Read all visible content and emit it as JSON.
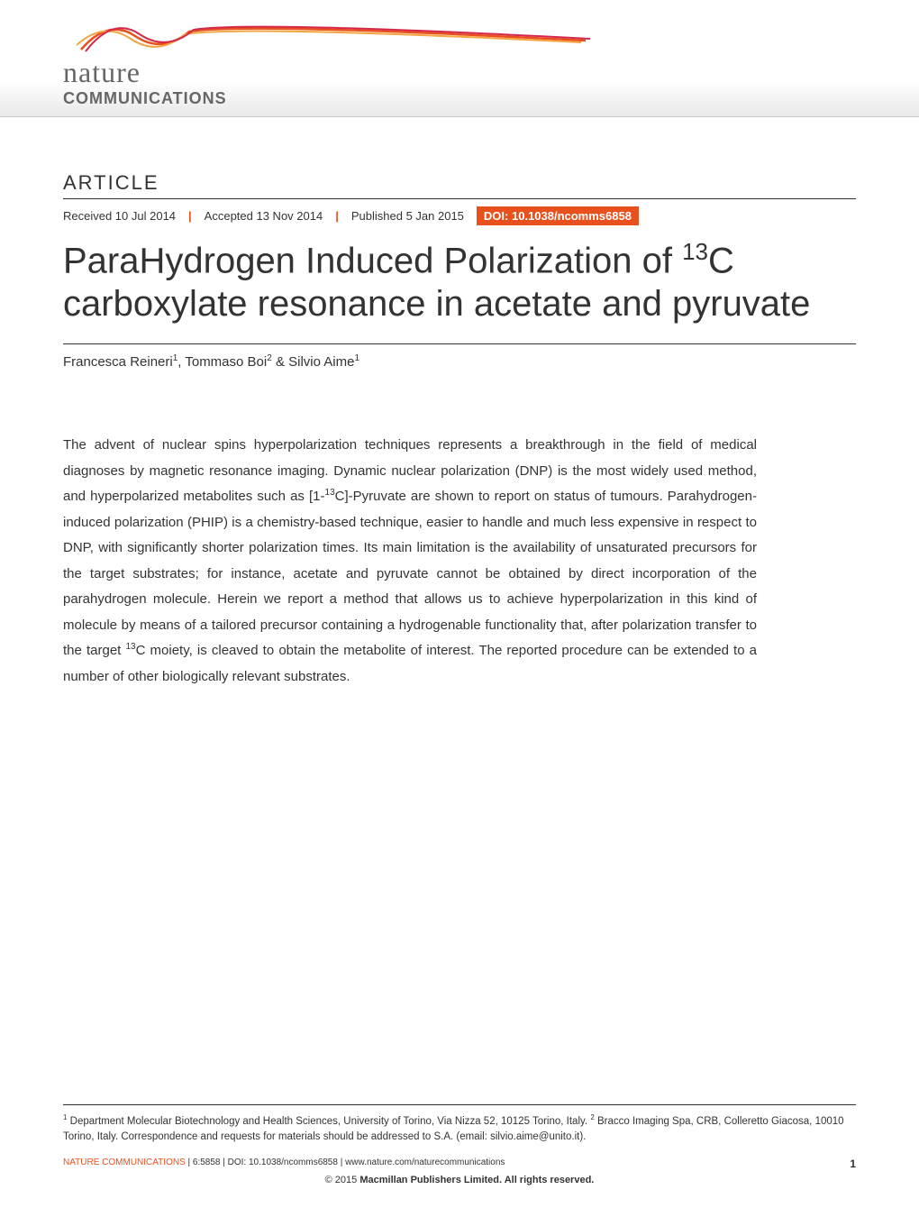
{
  "header": {
    "logo_nature": "nature",
    "logo_communications": "COMMUNICATIONS",
    "wave_colors": [
      "#e8501e",
      "#f4a540",
      "#d4294a"
    ]
  },
  "article": {
    "label": "ARTICLE",
    "received": "Received 10 Jul 2014",
    "accepted": "Accepted 13 Nov 2014",
    "published": "Published 5 Jan 2015",
    "doi": "DOI: 10.1038/ncomms6858",
    "title_html": "ParaHydrogen Induced Polarization of <sup>13</sup>C carboxylate resonance in acetate and pyruvate",
    "authors_html": "Francesca Reineri<sup>1</sup>, Tommaso Boi<sup>2</sup> & Silvio Aime<sup>1</sup>",
    "abstract_html": "The advent of nuclear spins hyperpolarization techniques represents a breakthrough in the field of medical diagnoses by magnetic resonance imaging. Dynamic nuclear polarization (DNP) is the most widely used method, and hyperpolarized metabolites such as [1-<sup>13</sup>C]-Pyruvate are shown to report on status of tumours. Parahydrogen-induced polarization (PHIP) is a chemistry-based technique, easier to handle and much less expensive in respect to DNP, with significantly shorter polarization times. Its main limitation is the availability of unsaturated precursors for the target substrates; for instance, acetate and pyruvate cannot be obtained by direct incorporation of the parahydrogen molecule. Herein we report a method that allows us to achieve hyperpolarization in this kind of molecule by means of a tailored precursor containing a hydrogenable functionality that, after polarization transfer to the target <sup>13</sup>C moiety, is cleaved to obtain the metabolite of interest. The reported procedure can be extended to a number of other biologically relevant substrates."
  },
  "affiliations_html": "<sup>1</sup> Department Molecular Biotechnology and Health Sciences, University of Torino, Via Nizza 52, 10125 Torino, Italy. <sup>2</sup> Bracco Imaging Spa, CRB, Colleretto Giacosa, 10010 Torino, Italy. Correspondence and requests for materials should be addressed to S.A. (email: silvio.aime@unito.it).",
  "footer": {
    "citation_journal": "NATURE COMMUNICATIONS",
    "citation_details": " | 6:5858 | DOI: 10.1038/ncomms6858 | www.nature.com/naturecommunications",
    "page_number": "1",
    "copyright_symbol": "© 2015 ",
    "copyright_text": "Macmillan Publishers Limited. All rights reserved."
  },
  "colors": {
    "accent_orange": "#e8501e",
    "text_dark": "#333333",
    "text_gray": "#666666",
    "background": "#ffffff",
    "header_gradient_end": "#e8e8e8"
  },
  "typography": {
    "title_fontsize": 40,
    "body_fontsize": 15,
    "label_fontsize": 22,
    "footer_fontsize": 10,
    "affiliations_fontsize": 11.5
  }
}
